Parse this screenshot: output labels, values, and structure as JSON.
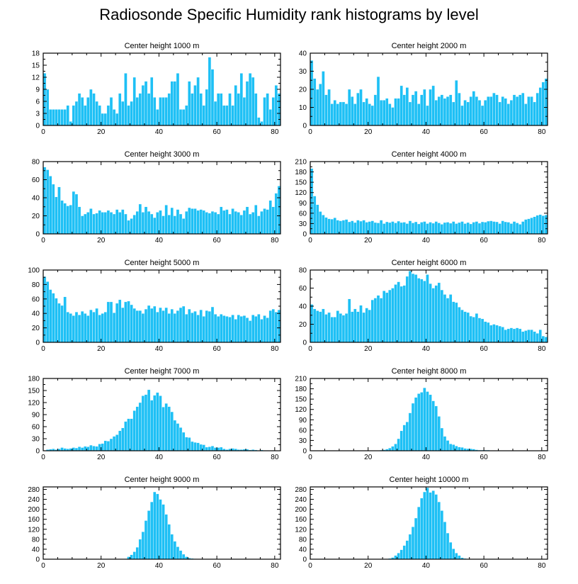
{
  "title": "Radiosonde Specific Humidity rank histograms by level",
  "colors": {
    "bar": "#1ec0f5",
    "bar_edge": "#ffffff",
    "axis": "#000000"
  },
  "chart_data": [
    {
      "type": "bar",
      "title": "Center height 1000 m",
      "xlim": [
        0,
        82
      ],
      "ylim": [
        0,
        18
      ],
      "yticks": [
        0,
        3,
        6,
        9,
        12,
        15,
        18
      ],
      "xticks": [
        0,
        20,
        40,
        60,
        80
      ],
      "x_start": 0,
      "values": [
        13,
        9,
        4,
        4,
        4,
        4,
        4,
        4,
        5,
        1,
        5,
        6,
        8,
        7,
        5,
        7,
        9,
        8,
        6,
        5,
        3,
        3,
        5,
        7,
        4,
        3,
        8,
        6,
        13,
        5,
        6,
        12,
        7,
        8,
        10,
        11,
        8,
        12,
        7,
        4,
        7,
        7,
        7,
        8,
        11,
        11,
        13,
        4,
        4,
        5,
        11,
        8,
        10,
        12,
        8,
        5,
        9,
        17,
        14,
        6,
        8,
        8,
        5,
        5,
        8,
        5,
        10,
        8,
        13,
        7,
        11,
        13,
        12,
        8,
        2,
        1,
        7,
        8,
        4,
        7,
        10,
        8
      ]
    },
    {
      "type": "bar",
      "title": "Center height 2000 m",
      "xlim": [
        0,
        82
      ],
      "ylim": [
        0,
        40
      ],
      "yticks": [
        0,
        10,
        20,
        30,
        40
      ],
      "xticks": [
        0,
        20,
        40,
        60,
        80
      ],
      "x_start": 0,
      "values": [
        36,
        26,
        20,
        23,
        30,
        17,
        20,
        12,
        14,
        12,
        13,
        13,
        12,
        20,
        16,
        12,
        18,
        20,
        13,
        15,
        12,
        11,
        17,
        27,
        14,
        14,
        15,
        12,
        10,
        15,
        15,
        22,
        17,
        21,
        13,
        17,
        19,
        12,
        17,
        20,
        11,
        20,
        22,
        14,
        16,
        17,
        15,
        16,
        17,
        13,
        25,
        18,
        11,
        14,
        13,
        16,
        19,
        16,
        14,
        11,
        14,
        16,
        16,
        18,
        17,
        13,
        16,
        15,
        12,
        14,
        17,
        16,
        17,
        18,
        12,
        16,
        16,
        13,
        18,
        21,
        24,
        26
      ]
    },
    {
      "type": "bar",
      "title": "Center height 3000 m",
      "xlim": [
        0,
        82
      ],
      "ylim": [
        0,
        80
      ],
      "yticks": [
        0,
        20,
        40,
        60,
        80
      ],
      "xticks": [
        0,
        20,
        40,
        60,
        80
      ],
      "x_start": 0,
      "values": [
        74,
        71,
        64,
        55,
        41,
        52,
        37,
        34,
        31,
        32,
        47,
        44,
        30,
        20,
        22,
        24,
        28,
        22,
        23,
        26,
        24,
        24,
        26,
        24,
        22,
        27,
        24,
        27,
        22,
        15,
        17,
        21,
        25,
        33,
        24,
        30,
        25,
        22,
        18,
        24,
        26,
        20,
        32,
        21,
        29,
        20,
        27,
        22,
        17,
        25,
        29,
        28,
        28,
        26,
        27,
        26,
        24,
        23,
        25,
        24,
        22,
        30,
        26,
        27,
        22,
        28,
        25,
        24,
        21,
        26,
        30,
        22,
        24,
        32,
        20,
        25,
        28,
        27,
        37,
        30,
        45,
        53
      ]
    },
    {
      "type": "bar",
      "title": "Center height 4000 m",
      "xlim": [
        0,
        82
      ],
      "ylim": [
        0,
        210
      ],
      "yticks": [
        0,
        30,
        60,
        90,
        120,
        150,
        180,
        210
      ],
      "xticks": [
        0,
        20,
        40,
        60,
        80
      ],
      "x_start": 0,
      "values": [
        190,
        110,
        85,
        65,
        55,
        48,
        44,
        43,
        47,
        40,
        38,
        40,
        42,
        35,
        38,
        33,
        40,
        37,
        40,
        34,
        36,
        38,
        33,
        32,
        40,
        30,
        35,
        33,
        36,
        32,
        37,
        33,
        34,
        30,
        38,
        32,
        35,
        29,
        34,
        36,
        30,
        34,
        31,
        36,
        32,
        28,
        33,
        34,
        31,
        36,
        30,
        33,
        36,
        30,
        33,
        29,
        34,
        36,
        31,
        35,
        34,
        37,
        38,
        36,
        35,
        30,
        38,
        35,
        34,
        30,
        36,
        32,
        28,
        36,
        42,
        44,
        47,
        50,
        54,
        56,
        53,
        55
      ]
    },
    {
      "type": "bar",
      "title": "Center height 5000 m",
      "xlim": [
        0,
        82
      ],
      "ylim": [
        0,
        100
      ],
      "yticks": [
        0,
        20,
        40,
        60,
        80,
        100
      ],
      "xticks": [
        0,
        20,
        40,
        60,
        80
      ],
      "x_start": 0,
      "values": [
        91,
        84,
        73,
        68,
        61,
        54,
        51,
        63,
        42,
        40,
        37,
        42,
        38,
        43,
        40,
        37,
        45,
        42,
        47,
        38,
        40,
        42,
        56,
        56,
        41,
        54,
        59,
        48,
        56,
        57,
        52,
        47,
        44,
        44,
        40,
        46,
        51,
        47,
        50,
        42,
        48,
        44,
        48,
        40,
        46,
        40,
        44,
        48,
        50,
        39,
        46,
        41,
        43,
        38,
        45,
        36,
        44,
        43,
        49,
        39,
        36,
        39,
        37,
        36,
        35,
        38,
        32,
        38,
        36,
        37,
        34,
        30,
        38,
        36,
        39,
        32,
        37,
        34,
        44,
        46,
        42,
        45
      ]
    },
    {
      "type": "bar",
      "title": "Center height 6000 m",
      "xlim": [
        0,
        82
      ],
      "ylim": [
        0,
        80
      ],
      "yticks": [
        0,
        20,
        40,
        60,
        80
      ],
      "xticks": [
        0,
        20,
        40,
        60,
        80
      ],
      "x_start": 0,
      "values": [
        42,
        37,
        35,
        34,
        37,
        31,
        33,
        28,
        28,
        35,
        32,
        30,
        32,
        48,
        34,
        37,
        34,
        41,
        33,
        38,
        36,
        47,
        49,
        52,
        49,
        57,
        55,
        58,
        60,
        64,
        67,
        62,
        63,
        73,
        79,
        76,
        75,
        71,
        70,
        68,
        75,
        65,
        60,
        63,
        66,
        58,
        53,
        49,
        53,
        45,
        44,
        39,
        36,
        34,
        33,
        29,
        28,
        32,
        27,
        26,
        23,
        22,
        19,
        20,
        19,
        18,
        17,
        14,
        15,
        16,
        15,
        16,
        15,
        12,
        13,
        14,
        14,
        12,
        10,
        14,
        7,
        6
      ]
    },
    {
      "type": "bar",
      "title": "Center height 7000 m",
      "xlim": [
        0,
        82
      ],
      "ylim": [
        0,
        180
      ],
      "yticks": [
        0,
        30,
        60,
        90,
        120,
        150,
        180
      ],
      "xticks": [
        0,
        20,
        40,
        60,
        80
      ],
      "x_start": 0,
      "values": [
        0,
        3,
        4,
        5,
        3,
        5,
        8,
        6,
        5,
        6,
        8,
        7,
        10,
        8,
        11,
        10,
        14,
        12,
        11,
        17,
        18,
        25,
        24,
        30,
        36,
        40,
        50,
        57,
        73,
        80,
        80,
        100,
        110,
        120,
        137,
        140,
        152,
        126,
        138,
        145,
        137,
        109,
        118,
        110,
        97,
        76,
        68,
        58,
        46,
        34,
        33,
        23,
        21,
        20,
        16,
        15,
        9,
        10,
        12,
        8,
        8,
        9,
        5,
        3,
        5,
        6,
        5,
        3,
        3,
        4,
        4,
        2,
        3,
        2,
        1,
        2,
        1,
        1,
        0,
        1,
        0,
        0
      ]
    },
    {
      "type": "bar",
      "title": "Center height 8000 m",
      "xlim": [
        0,
        82
      ],
      "ylim": [
        0,
        210
      ],
      "yticks": [
        0,
        30,
        60,
        90,
        120,
        150,
        180,
        210
      ],
      "xticks": [
        0,
        20,
        40,
        60,
        80
      ],
      "x_start": 0,
      "values": [
        0,
        0,
        0,
        0,
        0,
        0,
        0,
        0,
        0,
        0,
        0,
        0,
        0,
        0,
        0,
        0,
        0,
        0,
        0,
        0,
        0,
        0,
        0,
        0,
        2,
        3,
        5,
        8,
        13,
        20,
        35,
        58,
        75,
        84,
        110,
        138,
        155,
        166,
        170,
        183,
        172,
        163,
        145,
        130,
        100,
        66,
        42,
        30,
        20,
        18,
        14,
        11,
        10,
        7,
        6,
        6,
        5,
        3,
        2,
        2,
        2,
        2,
        1,
        1,
        1,
        1,
        1,
        1,
        1,
        0,
        0,
        0,
        0,
        0,
        0,
        0,
        0,
        0,
        0,
        0,
        0,
        0
      ]
    },
    {
      "type": "bar",
      "title": "Center height 9000 m",
      "xlim": [
        0,
        82
      ],
      "ylim": [
        0,
        290
      ],
      "yticks": [
        0,
        40,
        80,
        120,
        160,
        200,
        240,
        280
      ],
      "xticks": [
        0,
        20,
        40,
        60,
        80
      ],
      "x_start": 0,
      "values": [
        0,
        0,
        0,
        0,
        0,
        0,
        0,
        0,
        0,
        0,
        0,
        0,
        0,
        0,
        0,
        0,
        0,
        0,
        0,
        0,
        0,
        0,
        0,
        0,
        0,
        0,
        0,
        0,
        2,
        10,
        18,
        30,
        48,
        80,
        110,
        155,
        195,
        230,
        270,
        262,
        240,
        220,
        180,
        140,
        100,
        72,
        50,
        35,
        20,
        10,
        5,
        3,
        2,
        1,
        1,
        0,
        0,
        0,
        0,
        0,
        0,
        0,
        0,
        0,
        0,
        0,
        0,
        0,
        0,
        0,
        0,
        0,
        0,
        0,
        0,
        0,
        0,
        0,
        0,
        0,
        0,
        0
      ]
    },
    {
      "type": "bar",
      "title": "Center height 10000 m",
      "xlim": [
        0,
        82
      ],
      "ylim": [
        0,
        290
      ],
      "yticks": [
        0,
        40,
        80,
        120,
        160,
        200,
        240,
        280
      ],
      "xticks": [
        0,
        20,
        40,
        60,
        80
      ],
      "x_start": 0,
      "values": [
        0,
        0,
        0,
        0,
        0,
        0,
        0,
        0,
        0,
        0,
        0,
        0,
        0,
        0,
        0,
        0,
        0,
        0,
        0,
        0,
        0,
        0,
        0,
        0,
        0,
        0,
        1,
        3,
        7,
        15,
        25,
        38,
        55,
        75,
        100,
        130,
        165,
        210,
        245,
        270,
        287,
        268,
        275,
        260,
        230,
        195,
        150,
        105,
        68,
        42,
        25,
        15,
        6,
        3,
        2,
        1,
        1,
        0,
        0,
        0,
        0,
        1,
        0,
        0,
        0,
        0,
        0,
        0,
        0,
        0,
        0,
        0,
        0,
        0,
        0,
        0,
        0,
        0,
        0,
        0,
        0,
        0
      ]
    }
  ]
}
